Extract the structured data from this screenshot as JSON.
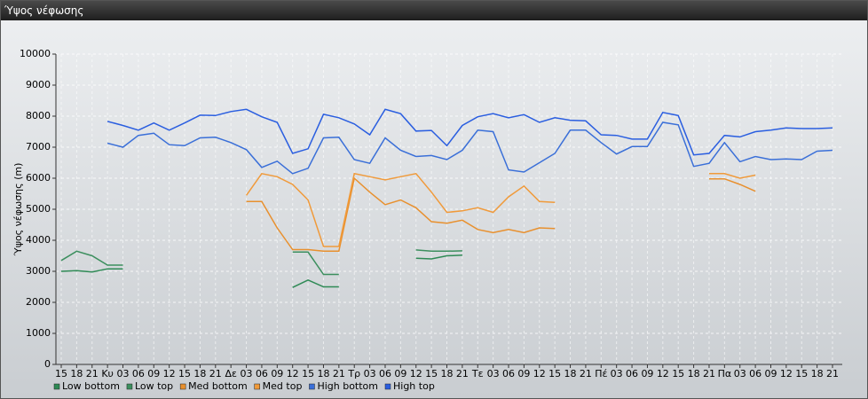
{
  "window_title": "Ύψος νέφωσης",
  "chart_data": {
    "type": "line",
    "y_label": "Ύψος νέφωσης (m)",
    "categories": [
      "15",
      "18",
      "21",
      "Κυ",
      "03",
      "06",
      "09",
      "12",
      "15",
      "18",
      "21",
      "Δε",
      "03",
      "06",
      "09",
      "12",
      "15",
      "18",
      "21",
      "Τρ",
      "03",
      "06",
      "09",
      "12",
      "15",
      "18",
      "21",
      "Τε",
      "03",
      "06",
      "09",
      "12",
      "15",
      "18",
      "21",
      "Πέ",
      "03",
      "06",
      "09",
      "12",
      "15",
      "18",
      "21",
      "Πα",
      "03",
      "06",
      "09",
      "12",
      "15",
      "18",
      "21"
    ],
    "ylim": [
      0,
      10000
    ],
    "yticks": [
      0,
      1000,
      2000,
      3000,
      4000,
      5000,
      6000,
      7000,
      8000,
      9000,
      10000
    ],
    "grid": true,
    "legend": "bottom-left",
    "series": [
      {
        "name": "Low bottom",
        "color": "#2e8a55",
        "values": [
          3000,
          3020,
          2980,
          3080,
          3080,
          null,
          null,
          null,
          null,
          null,
          null,
          null,
          null,
          null,
          null,
          2480,
          2720,
          2500,
          2500,
          null,
          null,
          null,
          null,
          3420,
          3400,
          3500,
          3520,
          null,
          null,
          null,
          null,
          null,
          null,
          null,
          null,
          null,
          null,
          null,
          null,
          null,
          null,
          null,
          null,
          null,
          null,
          null,
          null,
          null,
          null,
          null,
          null
        ]
      },
      {
        "name": "Low top",
        "color": "#3c8f5e",
        "values": [
          3350,
          3650,
          3500,
          3200,
          3200,
          null,
          null,
          null,
          null,
          null,
          null,
          null,
          null,
          null,
          null,
          3620,
          3620,
          2900,
          2900,
          null,
          null,
          null,
          null,
          3690,
          3650,
          3650,
          3660,
          null,
          null,
          null,
          null,
          null,
          null,
          null,
          null,
          null,
          null,
          null,
          null,
          null,
          null,
          null,
          null,
          null,
          null,
          null,
          null,
          null,
          null,
          null,
          null
        ]
      },
      {
        "name": "Med bottom",
        "color": "#e8902e",
        "values": [
          null,
          null,
          null,
          null,
          null,
          null,
          null,
          null,
          null,
          null,
          null,
          null,
          5250,
          5250,
          4400,
          3700,
          3700,
          3650,
          3650,
          6000,
          5550,
          5150,
          5300,
          5050,
          4600,
          4550,
          4650,
          4350,
          4250,
          4350,
          4250,
          4400,
          4380,
          null,
          null,
          null,
          null,
          null,
          null,
          null,
          null,
          null,
          5980,
          5980,
          5800,
          5580,
          null,
          null,
          null,
          null,
          null
        ]
      },
      {
        "name": "Med top",
        "color": "#f09a3a",
        "values": [
          null,
          null,
          null,
          null,
          null,
          null,
          null,
          null,
          null,
          null,
          null,
          null,
          5450,
          6150,
          6050,
          5800,
          5300,
          3800,
          3800,
          6150,
          6050,
          5950,
          6050,
          6150,
          5550,
          4900,
          4950,
          5050,
          4900,
          5400,
          5750,
          5250,
          5220,
          null,
          null,
          null,
          null,
          null,
          null,
          null,
          null,
          null,
          6150,
          6150,
          6000,
          6100,
          null,
          null,
          null,
          null,
          null
        ]
      },
      {
        "name": "High bottom",
        "color": "#3a6fd8",
        "values": [
          null,
          null,
          null,
          7130,
          7000,
          7380,
          7450,
          7080,
          7050,
          7300,
          7320,
          7150,
          6920,
          6350,
          6550,
          6150,
          6320,
          7300,
          7320,
          6600,
          6480,
          7300,
          6900,
          6700,
          6730,
          6600,
          6900,
          7550,
          7500,
          6270,
          6200,
          6500,
          6800,
          7550,
          7550,
          7150,
          6780,
          7020,
          7020,
          7800,
          7720,
          6380,
          6480,
          7150,
          6530,
          6700,
          6600,
          6620,
          6600,
          6870,
          6900
        ]
      },
      {
        "name": "High top",
        "color": "#2a5ee0",
        "values": [
          null,
          null,
          null,
          7830,
          7700,
          7550,
          7780,
          7550,
          7780,
          8030,
          8020,
          8150,
          8220,
          7980,
          7800,
          6800,
          6950,
          8060,
          7950,
          7750,
          7400,
          8220,
          8080,
          7520,
          7540,
          7050,
          7700,
          7980,
          8080,
          7950,
          8050,
          7800,
          7950,
          7870,
          7850,
          7400,
          7380,
          7260,
          7260,
          8120,
          8020,
          6750,
          6800,
          7380,
          7330,
          7500,
          7550,
          7620,
          7600,
          7600,
          7620
        ]
      }
    ]
  }
}
